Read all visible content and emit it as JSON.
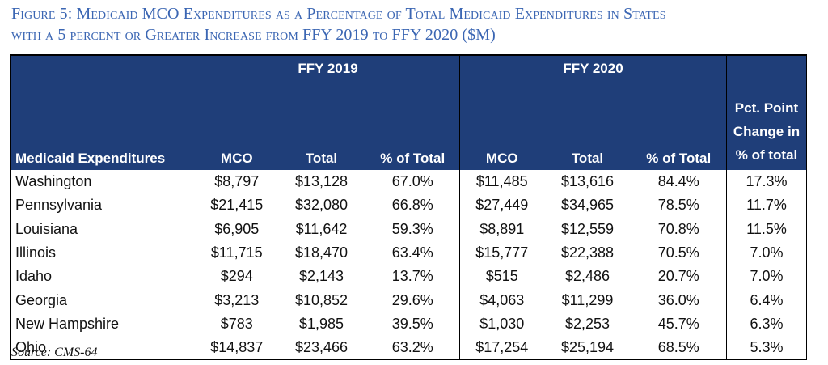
{
  "title_line1": "Figure 5: Medicaid MCO Expenditures as a Percentage of Total Medicaid Expenditures in States",
  "title_line2": "with a 5 percent or Greater Increase from FFY 2019 to FFY 2020 ($M)",
  "source": "Source: CMS-64",
  "chart_data": {
    "type": "table",
    "group_headers": [
      "FFY 2019",
      "FFY 2020"
    ],
    "columns": [
      "Medicaid Expenditures",
      "MCO",
      "Total",
      "% of Total",
      "MCO",
      "Total",
      "% of Total",
      "Pct. Point Change in % of total"
    ],
    "rows": [
      [
        "Washington",
        "$8,797",
        "$13,128",
        "67.0%",
        "$11,485",
        "$13,616",
        "84.4%",
        "17.3%"
      ],
      [
        "Pennsylvania",
        "$21,415",
        "$32,080",
        "66.8%",
        "$27,449",
        "$34,965",
        "78.5%",
        "11.7%"
      ],
      [
        "Louisiana",
        "$6,905",
        "$11,642",
        "59.3%",
        "$8,891",
        "$12,559",
        "70.8%",
        "11.5%"
      ],
      [
        "Illinois",
        "$11,715",
        "$18,470",
        "63.4%",
        "$15,777",
        "$22,388",
        "70.5%",
        "7.0%"
      ],
      [
        "Idaho",
        "$294",
        "$2,143",
        "13.7%",
        "$515",
        "$2,486",
        "20.7%",
        "7.0%"
      ],
      [
        "Georgia",
        "$3,213",
        "$10,852",
        "29.6%",
        "$4,063",
        "$11,299",
        "36.0%",
        "6.4%"
      ],
      [
        "New Hampshire",
        "$783",
        "$1,985",
        "39.5%",
        "$1,030",
        "$2,253",
        "45.7%",
        "6.3%"
      ],
      [
        "Ohio",
        "$14,837",
        "$23,466",
        "63.2%",
        "$17,254",
        "$25,194",
        "68.5%",
        "5.3%"
      ]
    ]
  },
  "colors": {
    "header_bg": "#1f3e79",
    "title": "#3b66b3"
  }
}
